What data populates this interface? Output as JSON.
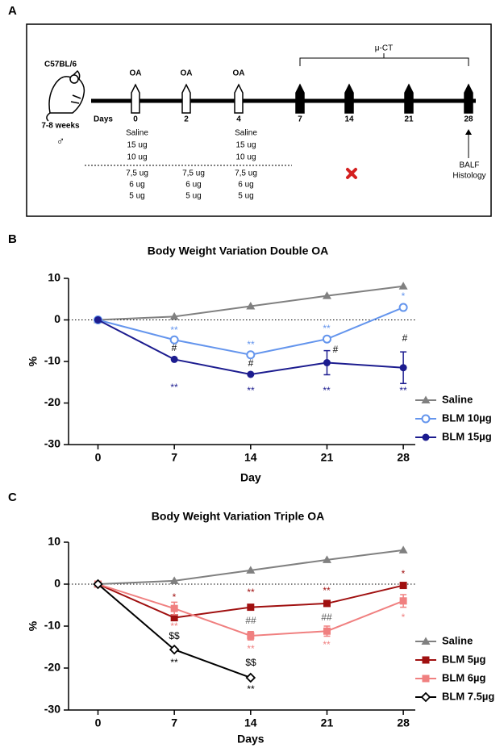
{
  "panel_labels": [
    "A",
    "B",
    "C"
  ],
  "diagram": {
    "strain": "C57BL/6",
    "age": "7-8 weeks",
    "sex": "♂",
    "days_label": "Days",
    "days": [
      "0",
      "2",
      "4",
      "7",
      "14",
      "21",
      "28"
    ],
    "oa_labels": [
      "OA",
      "OA",
      "OA"
    ],
    "imaging": "μ-CT",
    "doses_day0": [
      "Saline",
      "15 ug",
      "10 ug",
      "7,5 ug",
      "6 ug",
      "5 ug"
    ],
    "doses_day2": [
      "7,5 ug",
      "6 ug",
      "5 ug"
    ],
    "doses_day4": [
      "Saline",
      "15 ug",
      "10 ug",
      "7,5 ug",
      "6 ug",
      "5 ug"
    ],
    "endpoints": [
      "BALF",
      "Histology"
    ]
  },
  "chart_data": [
    {
      "type": "line",
      "title": "Body Weight Variation Double OA",
      "x_label": "Day",
      "y_label": "%",
      "x": [
        0,
        7,
        14,
        21,
        28
      ],
      "xlim": [
        -2.7,
        29.1
      ],
      "xticks": [
        0,
        7,
        14,
        21,
        28
      ],
      "ylim": [
        -30,
        10
      ],
      "yticks": [
        -30,
        -20,
        -10,
        0,
        10
      ],
      "zero_line": true,
      "series": [
        {
          "name": "Saline",
          "color": "#808080",
          "marker": "triangle",
          "values": [
            0,
            0.8,
            3.3,
            5.8,
            8.1
          ]
        },
        {
          "name": "BLM 10µg",
          "color": "#6495ed",
          "marker": "circle-open",
          "values": [
            0,
            -4.8,
            -8.4,
            -4.6,
            3.0
          ]
        },
        {
          "name": "BLM 15µg",
          "color": "#1c1c8f",
          "marker": "circle",
          "values": [
            0,
            -9.5,
            -13.1,
            -10.3,
            -11.5
          ],
          "errors": [
            null,
            null,
            null,
            2.9,
            3.8
          ]
        }
      ],
      "annotations": [
        {
          "text": "**",
          "color": "#6495ed"
        },
        {
          "text": "**",
          "color": "#6495ed"
        },
        {
          "text": "**",
          "color": "#6495ed"
        },
        {
          "text": "*",
          "color": "#6495ed"
        },
        {
          "text": "#",
          "color": "#000000"
        },
        {
          "text": "#",
          "color": "#000000"
        },
        {
          "text": "#",
          "color": "#000000"
        },
        {
          "text": "#",
          "color": "#000000"
        },
        {
          "text": "**",
          "color": "#1c1c8f"
        },
        {
          "text": "**",
          "color": "#1c1c8f"
        },
        {
          "text": "**",
          "color": "#1c1c8f"
        },
        {
          "text": "**",
          "color": "#1c1c8f"
        }
      ]
    },
    {
      "type": "line",
      "title": "Body Weight Variation Triple OA",
      "x_label": "Days",
      "y_label": "%",
      "x": [
        0,
        7,
        14,
        21,
        28
      ],
      "xlim": [
        -2.7,
        29.1
      ],
      "xticks": [
        0,
        7,
        14,
        21,
        28
      ],
      "ylim": [
        -30,
        10
      ],
      "yticks": [
        -30,
        -20,
        -10,
        0,
        10
      ],
      "zero_line": true,
      "series": [
        {
          "name": "Saline",
          "color": "#808080",
          "marker": "triangle",
          "values": [
            0,
            0.8,
            3.3,
            5.8,
            8.1
          ]
        },
        {
          "name": "BLM 5µg",
          "color": "#a01010",
          "marker": "square",
          "values": [
            0,
            -8.0,
            -5.5,
            -4.6,
            -0.3
          ]
        },
        {
          "name": "BLM 6µg",
          "color": "#f08080",
          "marker": "square",
          "values": [
            0,
            -5.8,
            -12.3,
            -11.2,
            -4.0
          ],
          "errors": [
            null,
            1.5,
            1.0,
            1.2,
            1.5
          ]
        },
        {
          "name": "BLM 7.5µg",
          "color": "#000000",
          "marker": "diamond-open",
          "values": [
            0,
            -15.6,
            -22.3,
            null,
            null
          ]
        }
      ],
      "annotations": [
        {
          "text": "*",
          "color": "#a01010"
        },
        {
          "text": "**",
          "color": "#a01010"
        },
        {
          "text": "**",
          "color": "#a01010"
        },
        {
          "text": "*",
          "color": "#a01010"
        },
        {
          "text": "**",
          "color": "#f08080"
        },
        {
          "text": "**",
          "color": "#f08080"
        },
        {
          "text": "**",
          "color": "#f08080"
        },
        {
          "text": "*",
          "color": "#f08080"
        },
        {
          "text": "##",
          "color": "#555555"
        },
        {
          "text": "##",
          "color": "#555555"
        },
        {
          "text": "$$",
          "color": "#000000"
        },
        {
          "text": "$$",
          "color": "#000000"
        },
        {
          "text": "**",
          "color": "#000000"
        },
        {
          "text": "**",
          "color": "#000000"
        }
      ]
    }
  ]
}
